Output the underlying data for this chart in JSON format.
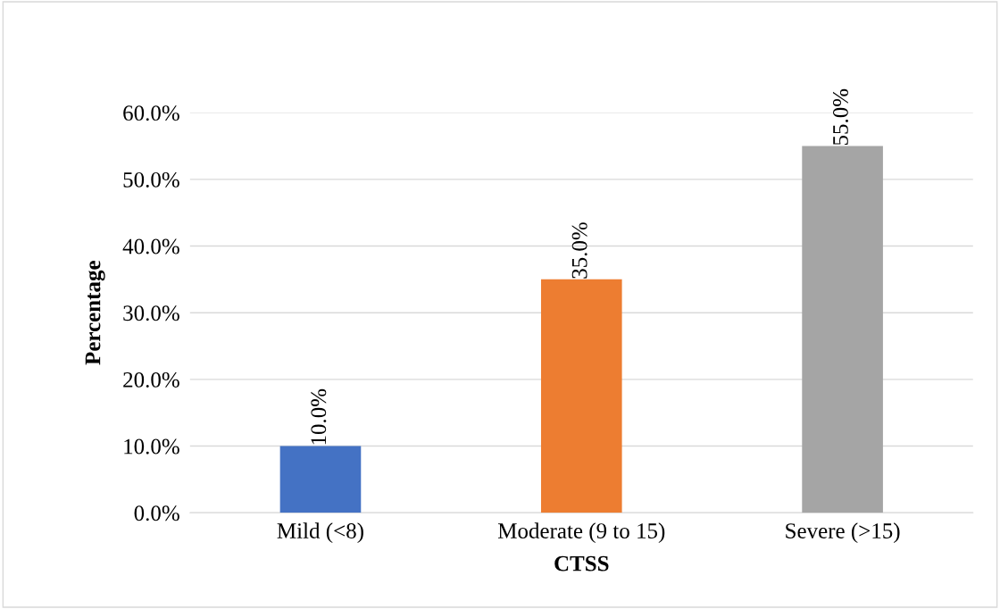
{
  "chart_data": {
    "type": "bar",
    "xlabel": "CTSS",
    "ylabel": "Percentage",
    "categories": [
      "Mild (<8)",
      "Moderate (9 to 15)",
      "Severe (>15)"
    ],
    "values": [
      10,
      35,
      55
    ],
    "colors": [
      "#4472c4",
      "#ed7d31",
      "#a5a5a5"
    ],
    "value_labels": [
      "10.0%",
      "35.0%",
      "55.0%"
    ],
    "ylim": [
      0,
      60
    ],
    "yticks": [
      {
        "value": 0,
        "label": "0.0%"
      },
      {
        "value": 10,
        "label": "10.0%"
      },
      {
        "value": 20,
        "label": "20.0%"
      },
      {
        "value": 30,
        "label": "30.0%"
      },
      {
        "value": 40,
        "label": "40.0%"
      },
      {
        "value": 50,
        "label": "50.0%"
      },
      {
        "value": 60,
        "label": "60.0%"
      }
    ],
    "grid": "y",
    "legend": false
  }
}
